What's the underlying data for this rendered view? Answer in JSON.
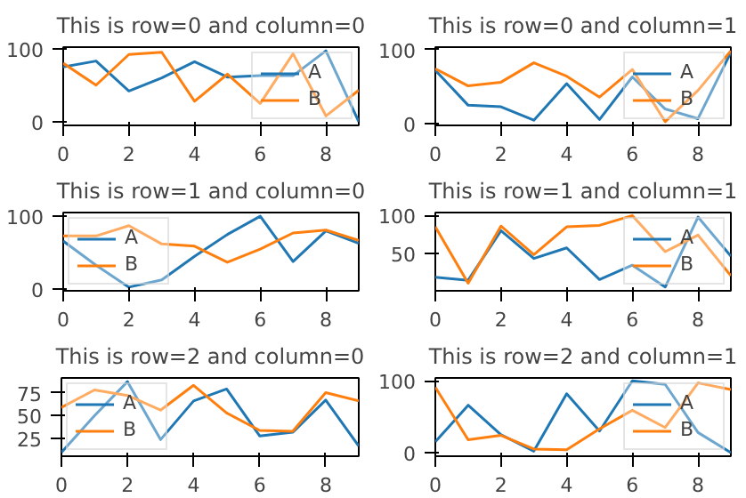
{
  "chart_data": [
    {
      "type": "line",
      "title": "This is row=0 and column=0",
      "x": [
        0,
        1,
        2,
        3,
        4,
        5,
        6,
        7,
        8,
        9
      ],
      "xlim": [
        0,
        9
      ],
      "xticks": [
        0,
        2,
        4,
        6,
        8
      ],
      "ylim": [
        -5,
        102
      ],
      "yticks": [
        0,
        100
      ],
      "grid": false,
      "legend": "top right",
      "series": [
        {
          "name": "A",
          "color": "#1f77b4",
          "values": [
            75,
            83,
            42,
            60,
            82,
            61,
            63,
            63,
            97,
            0
          ]
        },
        {
          "name": "B",
          "color": "#ff7f0e",
          "values": [
            80,
            50,
            92,
            95,
            28,
            65,
            25,
            93,
            8,
            43
          ]
        }
      ]
    },
    {
      "type": "line",
      "title": "This is row=0 and column=1",
      "x": [
        0,
        1,
        2,
        3,
        4,
        5,
        6,
        7,
        8,
        9
      ],
      "xlim": [
        0,
        9
      ],
      "xticks": [
        0,
        2,
        4,
        6,
        8
      ],
      "ylim": [
        -2,
        103
      ],
      "yticks": [
        0,
        100
      ],
      "grid": false,
      "legend": "top right",
      "series": [
        {
          "name": "A",
          "color": "#1f77b4",
          "values": [
            72,
            25,
            23,
            5,
            54,
            6,
            63,
            20,
            7,
            96
          ]
        },
        {
          "name": "B",
          "color": "#ff7f0e",
          "values": [
            74,
            51,
            56,
            82,
            64,
            36,
            73,
            3,
            45,
            98
          ]
        }
      ]
    },
    {
      "type": "line",
      "title": "This is row=1 and column=0",
      "x": [
        0,
        1,
        2,
        3,
        4,
        5,
        6,
        7,
        8,
        9
      ],
      "xlim": [
        0,
        9
      ],
      "xticks": [
        0,
        2,
        4,
        6,
        8
      ],
      "ylim": [
        -2,
        105
      ],
      "yticks": [
        0,
        100
      ],
      "grid": false,
      "legend": "left",
      "series": [
        {
          "name": "A",
          "color": "#1f77b4",
          "values": [
            66,
            33,
            3,
            13,
            45,
            75,
            100,
            38,
            80,
            63
          ]
        },
        {
          "name": "B",
          "color": "#ff7f0e",
          "values": [
            73,
            73,
            87,
            62,
            59,
            37,
            55,
            77,
            81,
            67
          ]
        }
      ]
    },
    {
      "type": "line",
      "title": "This is row=1 and column=1",
      "x": [
        0,
        1,
        2,
        3,
        4,
        5,
        6,
        7,
        8,
        9
      ],
      "xlim": [
        0,
        9
      ],
      "xticks": [
        0,
        2,
        4,
        6,
        8
      ],
      "ylim": [
        0,
        104
      ],
      "yticks": [
        50,
        100
      ],
      "grid": false,
      "legend": "top right",
      "series": [
        {
          "name": "A",
          "color": "#1f77b4",
          "values": [
            18,
            14,
            80,
            43,
            57,
            15,
            34,
            5,
            98,
            46
          ]
        },
        {
          "name": "B",
          "color": "#ff7f0e",
          "values": [
            85,
            10,
            86,
            48,
            85,
            87,
            100,
            52,
            74,
            20
          ]
        }
      ]
    },
    {
      "type": "line",
      "title": "This is row=2 and column=0",
      "x": [
        0,
        1,
        2,
        3,
        4,
        5,
        6,
        7,
        8,
        9
      ],
      "xlim": [
        0,
        9
      ],
      "xticks": [
        0,
        2,
        4,
        6,
        8
      ],
      "ylim": [
        6,
        91
      ],
      "yticks": [
        25,
        50,
        75
      ],
      "grid": false,
      "legend": "left",
      "series": [
        {
          "name": "A",
          "color": "#1f77b4",
          "values": [
            10,
            50,
            87,
            24,
            66,
            79,
            28,
            32,
            67,
            17
          ]
        },
        {
          "name": "B",
          "color": "#ff7f0e",
          "values": [
            59,
            78,
            72,
            56,
            83,
            53,
            34,
            33,
            75,
            66
          ]
        }
      ]
    },
    {
      "type": "line",
      "title": "This is row=2 and column=1",
      "x": [
        0,
        1,
        2,
        3,
        4,
        5,
        6,
        7,
        8,
        9
      ],
      "xlim": [
        0,
        9
      ],
      "xticks": [
        0,
        2,
        4,
        6,
        8
      ],
      "ylim": [
        -5,
        104
      ],
      "yticks": [
        0,
        100
      ],
      "grid": false,
      "legend": "top right",
      "series": [
        {
          "name": "A",
          "color": "#1f77b4",
          "values": [
            15,
            66,
            25,
            2,
            82,
            30,
            100,
            95,
            28,
            0
          ]
        },
        {
          "name": "B",
          "color": "#ff7f0e",
          "values": [
            91,
            18,
            24,
            5,
            4,
            33,
            59,
            35,
            97,
            88
          ]
        }
      ]
    }
  ]
}
